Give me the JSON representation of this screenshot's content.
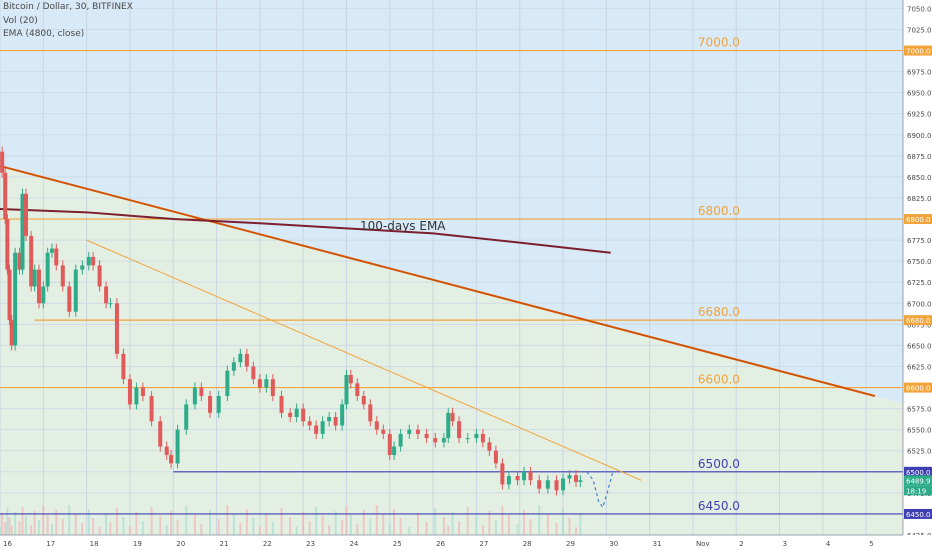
{
  "header": {
    "symbol_line": "Bitcoin / Dollar, 30, BITFINEX",
    "vol_line": "Vol (20)",
    "ema_line": "EMA (4800, close)"
  },
  "colors": {
    "background_upper": "#d8e9f7",
    "background_lower": "#e4efe3",
    "level_line": "#f2a33a",
    "support_line": "#3f3fb3",
    "trend_line": "#d35400",
    "ema_line": "#7d1f2d",
    "up_candle": "#2eab89",
    "down_candle": "#e05a5a"
  },
  "chart_data": {
    "type": "candlestick",
    "symbol": "Bitcoin / Dollar",
    "timeframe": "30",
    "exchange": "BITFINEX",
    "x_ticks": [
      "16",
      "17",
      "18",
      "19",
      "20",
      "21",
      "22",
      "23",
      "24",
      "25",
      "26",
      "27",
      "28",
      "29",
      "30",
      "31",
      "Nov",
      "2",
      "3",
      "4",
      "5"
    ],
    "ylim": [
      6425,
      7060
    ],
    "y_ticks": [
      6425.0,
      6450.0,
      6475.0,
      6500.0,
      6525.0,
      6550.0,
      6575.0,
      6600.0,
      6625.0,
      6650.0,
      6675.0,
      6700.0,
      6725.0,
      6750.0,
      6775.0,
      6800.0,
      6825.0,
      6850.0,
      6875.0,
      6900.0,
      6925.0,
      6950.0,
      6975.0,
      7000.0,
      7025.0,
      7050.0
    ],
    "price_path": [
      {
        "x": 16.0,
        "y": 6880
      },
      {
        "x": 16.05,
        "y": 6855
      },
      {
        "x": 16.12,
        "y": 6800
      },
      {
        "x": 16.17,
        "y": 6740
      },
      {
        "x": 16.22,
        "y": 6680
      },
      {
        "x": 16.27,
        "y": 6650
      },
      {
        "x": 16.35,
        "y": 6760
      },
      {
        "x": 16.45,
        "y": 6740
      },
      {
        "x": 16.52,
        "y": 6830
      },
      {
        "x": 16.6,
        "y": 6780
      },
      {
        "x": 16.72,
        "y": 6720
      },
      {
        "x": 16.8,
        "y": 6740
      },
      {
        "x": 16.9,
        "y": 6700
      },
      {
        "x": 17.0,
        "y": 6720
      },
      {
        "x": 17.1,
        "y": 6760
      },
      {
        "x": 17.2,
        "y": 6765
      },
      {
        "x": 17.3,
        "y": 6745
      },
      {
        "x": 17.45,
        "y": 6720
      },
      {
        "x": 17.6,
        "y": 6690
      },
      {
        "x": 17.75,
        "y": 6740
      },
      {
        "x": 17.9,
        "y": 6745
      },
      {
        "x": 18.05,
        "y": 6755
      },
      {
        "x": 18.15,
        "y": 6745
      },
      {
        "x": 18.3,
        "y": 6720
      },
      {
        "x": 18.45,
        "y": 6700
      },
      {
        "x": 18.55,
        "y": 6700
      },
      {
        "x": 18.7,
        "y": 6640
      },
      {
        "x": 18.85,
        "y": 6610
      },
      {
        "x": 19.0,
        "y": 6580
      },
      {
        "x": 19.15,
        "y": 6600
      },
      {
        "x": 19.3,
        "y": 6590
      },
      {
        "x": 19.5,
        "y": 6560
      },
      {
        "x": 19.7,
        "y": 6530
      },
      {
        "x": 19.85,
        "y": 6520
      },
      {
        "x": 19.95,
        "y": 6510
      },
      {
        "x": 20.1,
        "y": 6550
      },
      {
        "x": 20.3,
        "y": 6580
      },
      {
        "x": 20.5,
        "y": 6600
      },
      {
        "x": 20.65,
        "y": 6590
      },
      {
        "x": 20.85,
        "y": 6570
      },
      {
        "x": 21.05,
        "y": 6590
      },
      {
        "x": 21.25,
        "y": 6620
      },
      {
        "x": 21.4,
        "y": 6630
      },
      {
        "x": 21.55,
        "y": 6640
      },
      {
        "x": 21.7,
        "y": 6625
      },
      {
        "x": 21.85,
        "y": 6610
      },
      {
        "x": 22.0,
        "y": 6600
      },
      {
        "x": 22.15,
        "y": 6610
      },
      {
        "x": 22.3,
        "y": 6590
      },
      {
        "x": 22.5,
        "y": 6570
      },
      {
        "x": 22.7,
        "y": 6565
      },
      {
        "x": 22.85,
        "y": 6575
      },
      {
        "x": 23.0,
        "y": 6560
      },
      {
        "x": 23.15,
        "y": 6555
      },
      {
        "x": 23.3,
        "y": 6545
      },
      {
        "x": 23.45,
        "y": 6560
      },
      {
        "x": 23.6,
        "y": 6565
      },
      {
        "x": 23.75,
        "y": 6555
      },
      {
        "x": 23.9,
        "y": 6580
      },
      {
        "x": 24.0,
        "y": 6615
      },
      {
        "x": 24.1,
        "y": 6605
      },
      {
        "x": 24.25,
        "y": 6590
      },
      {
        "x": 24.4,
        "y": 6580
      },
      {
        "x": 24.55,
        "y": 6560
      },
      {
        "x": 24.7,
        "y": 6550
      },
      {
        "x": 24.85,
        "y": 6545
      },
      {
        "x": 25.0,
        "y": 6520
      },
      {
        "x": 25.1,
        "y": 6530
      },
      {
        "x": 25.25,
        "y": 6545
      },
      {
        "x": 25.45,
        "y": 6550
      },
      {
        "x": 25.65,
        "y": 6545
      },
      {
        "x": 25.85,
        "y": 6540
      },
      {
        "x": 26.05,
        "y": 6535
      },
      {
        "x": 26.25,
        "y": 6540
      },
      {
        "x": 26.35,
        "y": 6570
      },
      {
        "x": 26.45,
        "y": 6560
      },
      {
        "x": 26.6,
        "y": 6540
      },
      {
        "x": 26.8,
        "y": 6540
      },
      {
        "x": 27.0,
        "y": 6545
      },
      {
        "x": 27.15,
        "y": 6535
      },
      {
        "x": 27.3,
        "y": 6525
      },
      {
        "x": 27.45,
        "y": 6510
      },
      {
        "x": 27.6,
        "y": 6485
      },
      {
        "x": 27.75,
        "y": 6495
      },
      {
        "x": 27.95,
        "y": 6490
      },
      {
        "x": 28.1,
        "y": 6500
      },
      {
        "x": 28.25,
        "y": 6490
      },
      {
        "x": 28.45,
        "y": 6480
      },
      {
        "x": 28.65,
        "y": 6490
      },
      {
        "x": 28.85,
        "y": 6478
      },
      {
        "x": 29.0,
        "y": 6492
      },
      {
        "x": 29.15,
        "y": 6496
      },
      {
        "x": 29.3,
        "y": 6488
      },
      {
        "x": 29.4,
        "y": 6490
      }
    ],
    "projection_path": [
      {
        "x": 29.55,
        "y": 6500
      },
      {
        "x": 29.7,
        "y": 6490
      },
      {
        "x": 29.82,
        "y": 6465
      },
      {
        "x": 29.92,
        "y": 6458
      },
      {
        "x": 30.02,
        "y": 6475
      },
      {
        "x": 30.15,
        "y": 6500
      }
    ],
    "horizontal_levels": [
      {
        "value": 7000.0,
        "label": "7000.0",
        "color": "#f2a33a"
      },
      {
        "value": 6800.0,
        "label": "6800.0",
        "color": "#f2a33a"
      },
      {
        "value": 6680.0,
        "label": "6680.0",
        "color": "#f2a33a"
      },
      {
        "value": 6600.0,
        "label": "6600.0",
        "color": "#f2a33a"
      },
      {
        "value": 6500.0,
        "label": "6500.0",
        "color": "#3f3fb3"
      },
      {
        "value": 6450.0,
        "label": "6450.0",
        "color": "#3f3fb3"
      }
    ],
    "trendlines": [
      {
        "name": "main-downtrend",
        "x1": 16.0,
        "y1": 6863,
        "x2": 36.2,
        "y2": 6590,
        "color": "#d35400"
      },
      {
        "name": "secondary-downtrend",
        "x1": 18.0,
        "y1": 6775,
        "x2": 30.8,
        "y2": 6490,
        "color": "#f2a33a"
      }
    ],
    "ema_annotation": {
      "text": "100-days EMA",
      "points": [
        {
          "x": 16.0,
          "y": 6812
        },
        {
          "x": 18.0,
          "y": 6808
        },
        {
          "x": 20.0,
          "y": 6800
        },
        {
          "x": 22.0,
          "y": 6795
        },
        {
          "x": 24.0,
          "y": 6789
        },
        {
          "x": 26.0,
          "y": 6783
        },
        {
          "x": 28.0,
          "y": 6772
        },
        {
          "x": 30.1,
          "y": 6760
        }
      ]
    },
    "axis_badges": [
      {
        "label": "7000.0",
        "value": 7000.0,
        "color": "#f2a33a"
      },
      {
        "label": "6800.0",
        "value": 6800.0,
        "color": "#f2a33a"
      },
      {
        "label": "6680.0",
        "value": 6680.0,
        "color": "#f2a33a"
      },
      {
        "label": "6600.0",
        "value": 6600.0,
        "color": "#f2a33a"
      },
      {
        "label": "6500.0",
        "value": 6500.0,
        "color": "#3f3fb3"
      },
      {
        "label": "6489.9",
        "value": 6489.9,
        "color": "#2eab89"
      },
      {
        "label": "18:19",
        "value": 6478.0,
        "color": "#2eab89"
      },
      {
        "label": "6450.0",
        "value": 6450.0,
        "color": "#3f3fb3"
      }
    ]
  }
}
